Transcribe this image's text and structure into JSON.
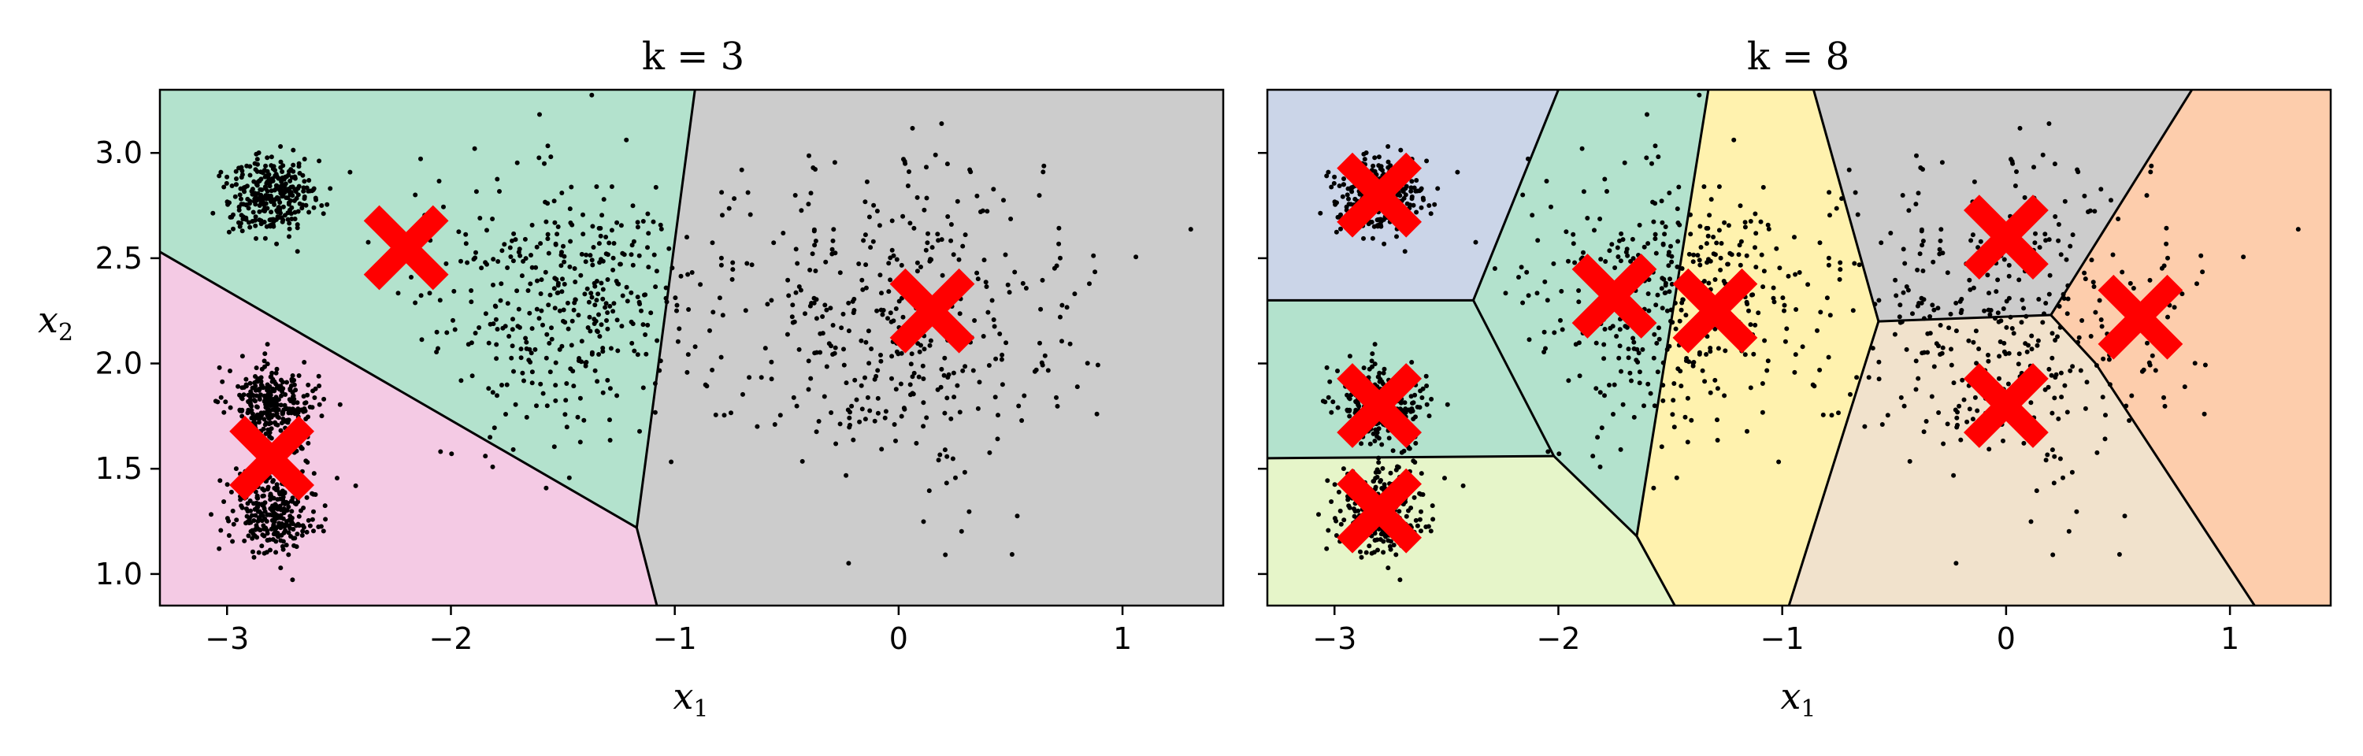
{
  "chart_data": [
    {
      "type": "scatter",
      "title": "k = 3",
      "xlabel": "x_1",
      "ylabel": "x_2",
      "xlim": [
        -3.3,
        1.45
      ],
      "ylim": [
        0.85,
        3.3
      ],
      "xticks": [
        -3,
        -2,
        -1,
        0,
        1
      ],
      "yticks": [
        1.0,
        1.5,
        2.0,
        2.5,
        3.0
      ],
      "xtick_labels": [
        "−3",
        "−2",
        "−1",
        "0",
        "1"
      ],
      "ytick_labels": [
        "1.0",
        "1.5",
        "2.0",
        "2.5",
        "3.0"
      ],
      "centroids": [
        [
          -2.2,
          2.55
        ],
        [
          -2.8,
          1.55
        ],
        [
          0.15,
          2.25
        ]
      ],
      "region_colors": [
        "#b3e2cd",
        "#f4cae4",
        "#cccccc"
      ],
      "regions": [
        {
          "color": "#b3e2cd",
          "polygon": [
            [
              -3.3,
              3.3
            ],
            [
              -0.91,
              3.3
            ],
            [
              -1.17,
              1.22
            ],
            [
              -3.3,
              2.53
            ]
          ]
        },
        {
          "color": "#f4cae4",
          "polygon": [
            [
              -3.3,
              2.53
            ],
            [
              -1.17,
              1.22
            ],
            [
              -1.08,
              0.85
            ],
            [
              -3.3,
              0.85
            ]
          ]
        },
        {
          "color": "#cccccc",
          "polygon": [
            [
              -0.91,
              3.3
            ],
            [
              1.45,
              3.3
            ],
            [
              1.45,
              0.85
            ],
            [
              -1.08,
              0.85
            ],
            [
              -1.17,
              1.22
            ]
          ]
        }
      ],
      "boundaries": [
        [
          [
            -3.3,
            2.53
          ],
          [
            -1.17,
            1.22
          ]
        ],
        [
          [
            -0.91,
            3.3
          ],
          [
            -1.17,
            1.22
          ]
        ],
        [
          [
            -1.17,
            1.22
          ],
          [
            -1.08,
            0.85
          ]
        ]
      ]
    },
    {
      "type": "scatter",
      "title": "k = 8",
      "xlabel": "x_1",
      "ylabel": "",
      "xlim": [
        -3.3,
        1.45
      ],
      "ylim": [
        0.85,
        3.3
      ],
      "xticks": [
        -3,
        -2,
        -1,
        0,
        1
      ],
      "yticks": [
        1.0,
        1.5,
        2.0,
        2.5,
        3.0
      ],
      "xtick_labels": [
        "−3",
        "−2",
        "−1",
        "0",
        "1"
      ],
      "ytick_labels": [],
      "centroids": [
        [
          -2.8,
          2.8
        ],
        [
          -2.8,
          1.8
        ],
        [
          -2.8,
          1.3
        ],
        [
          -1.75,
          2.32
        ],
        [
          -1.3,
          2.25
        ],
        [
          0.0,
          2.6
        ],
        [
          0.0,
          1.8
        ],
        [
          0.6,
          2.22
        ]
      ],
      "region_colors": [
        "#cbd5e8",
        "#b3e2cd",
        "#e6f5c9",
        "#b3e2cd",
        "#fff2ae",
        "#cccccc",
        "#f1e2cc",
        "#fdcdac"
      ],
      "regions": [
        {
          "color": "#cbd5e8",
          "polygon": [
            [
              -3.3,
              3.3
            ],
            [
              -2.0,
              3.3
            ],
            [
              -2.38,
              2.3
            ],
            [
              -3.3,
              2.3
            ]
          ]
        },
        {
          "color": "#b3e2cd",
          "polygon": [
            [
              -3.3,
              2.3
            ],
            [
              -2.38,
              2.3
            ],
            [
              -2.02,
              1.56
            ],
            [
              -3.3,
              1.55
            ]
          ]
        },
        {
          "color": "#e6f5c9",
          "polygon": [
            [
              -3.3,
              1.55
            ],
            [
              -2.02,
              1.56
            ],
            [
              -1.65,
              1.18
            ],
            [
              -1.48,
              0.85
            ],
            [
              -3.3,
              0.85
            ]
          ]
        },
        {
          "color": "#b3e2cd",
          "polygon": [
            [
              -2.0,
              3.3
            ],
            [
              -1.33,
              3.3
            ],
            [
              -1.65,
              1.18
            ],
            [
              -2.02,
              1.56
            ],
            [
              -2.38,
              2.3
            ]
          ]
        },
        {
          "color": "#fff2ae",
          "polygon": [
            [
              -1.33,
              3.3
            ],
            [
              -0.86,
              3.3
            ],
            [
              -0.57,
              2.2
            ],
            [
              -0.97,
              0.85
            ],
            [
              -1.48,
              0.85
            ],
            [
              -1.65,
              1.18
            ]
          ]
        },
        {
          "color": "#cccccc",
          "polygon": [
            [
              -0.86,
              3.3
            ],
            [
              0.83,
              3.3
            ],
            [
              0.2,
              2.23
            ],
            [
              -0.57,
              2.2
            ]
          ]
        },
        {
          "color": "#f1e2cc",
          "polygon": [
            [
              -0.57,
              2.2
            ],
            [
              0.2,
              2.23
            ],
            [
              0.4,
              2.0
            ],
            [
              1.11,
              0.85
            ],
            [
              -0.97,
              0.85
            ]
          ]
        },
        {
          "color": "#fdcdac",
          "polygon": [
            [
              0.83,
              3.3
            ],
            [
              1.45,
              3.3
            ],
            [
              1.45,
              0.85
            ],
            [
              1.11,
              0.85
            ],
            [
              0.4,
              2.0
            ],
            [
              0.2,
              2.23
            ]
          ]
        }
      ],
      "boundaries": [
        [
          [
            -3.3,
            2.3
          ],
          [
            -2.38,
            2.3
          ]
        ],
        [
          [
            -2.0,
            3.3
          ],
          [
            -2.38,
            2.3
          ]
        ],
        [
          [
            -2.38,
            2.3
          ],
          [
            -2.02,
            1.56
          ]
        ],
        [
          [
            -3.3,
            1.55
          ],
          [
            -2.02,
            1.56
          ]
        ],
        [
          [
            -2.02,
            1.56
          ],
          [
            -1.65,
            1.18
          ]
        ],
        [
          [
            -1.65,
            1.18
          ],
          [
            -1.48,
            0.85
          ]
        ],
        [
          [
            -1.33,
            3.3
          ],
          [
            -1.65,
            1.18
          ]
        ],
        [
          [
            -0.86,
            3.3
          ],
          [
            -0.57,
            2.2
          ]
        ],
        [
          [
            -0.57,
            2.2
          ],
          [
            -0.97,
            0.85
          ]
        ],
        [
          [
            -0.57,
            2.2
          ],
          [
            0.2,
            2.23
          ]
        ],
        [
          [
            0.2,
            2.23
          ],
          [
            0.83,
            3.3
          ]
        ],
        [
          [
            0.2,
            2.23
          ],
          [
            0.4,
            2.0
          ]
        ],
        [
          [
            0.4,
            2.0
          ],
          [
            1.11,
            0.85
          ]
        ]
      ]
    }
  ],
  "blobs": [
    {
      "cx": -2.8,
      "cy": 2.8,
      "sx": 0.1,
      "sy": 0.1,
      "n": 300
    },
    {
      "cx": -2.8,
      "cy": 1.8,
      "sx": 0.1,
      "sy": 0.1,
      "n": 300
    },
    {
      "cx": -2.8,
      "cy": 1.3,
      "sx": 0.1,
      "sy": 0.1,
      "n": 300
    },
    {
      "cx": -1.5,
      "cy": 2.3,
      "sx": 0.3,
      "sy": 0.3,
      "n": 400
    },
    {
      "cx": 0.0,
      "cy": 2.2,
      "sx": 0.4,
      "sy": 0.4,
      "n": 400
    }
  ],
  "colors": {
    "centroid": "#ff0000",
    "point": "#000000",
    "boundary": "#000000"
  }
}
